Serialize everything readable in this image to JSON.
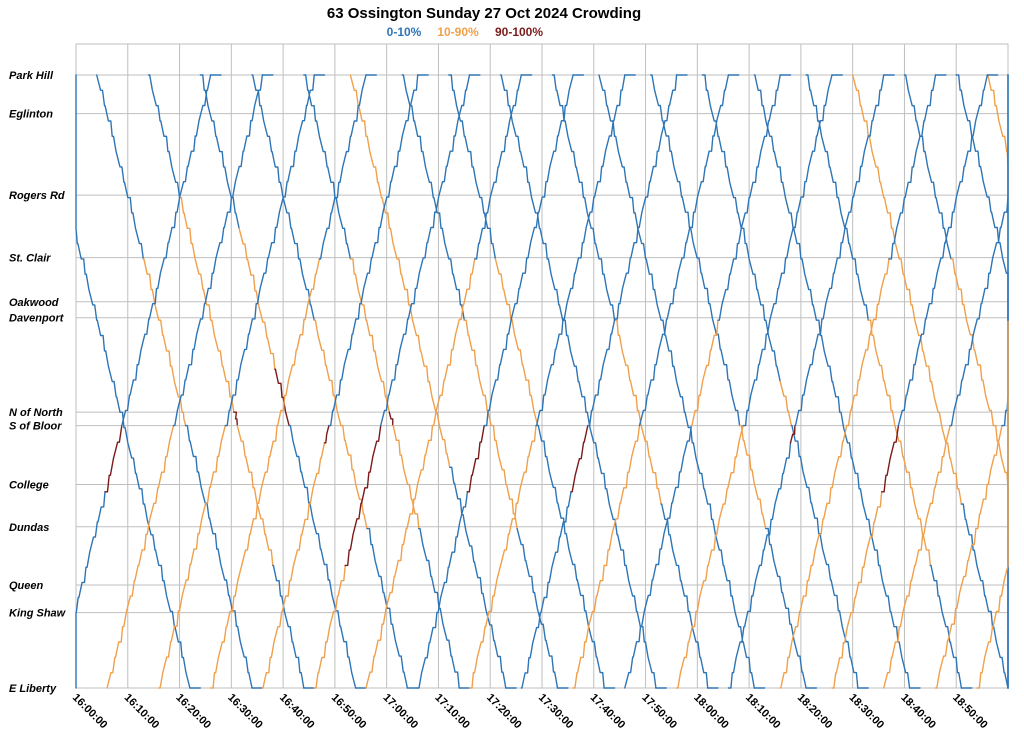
{
  "chart_data": {
    "type": "line",
    "title": "63 Ossington Sunday 27 Oct 2024 Crowding",
    "legend": [
      {
        "label": "0-10%",
        "color": "#2e75b6"
      },
      {
        "label": "10-90%",
        "color": "#f0a04b"
      },
      {
        "label": "90-100%",
        "color": "#7b1a1a"
      }
    ],
    "legend_position": "top-center",
    "grid": true,
    "stops": [
      {
        "name": "Park Hill",
        "pos": 0.0
      },
      {
        "name": "Eglinton",
        "pos": 0.063
      },
      {
        "name": "Rogers Rd",
        "pos": 0.196
      },
      {
        "name": "St. Clair",
        "pos": 0.298
      },
      {
        "name": "Oakwood",
        "pos": 0.37
      },
      {
        "name": "Davenport",
        "pos": 0.396
      },
      {
        "name": "N of North",
        "pos": 0.55
      },
      {
        "name": "S of Bloor",
        "pos": 0.572
      },
      {
        "name": "College",
        "pos": 0.668
      },
      {
        "name": "Dundas",
        "pos": 0.737
      },
      {
        "name": "Queen",
        "pos": 0.832
      },
      {
        "name": "King Shaw",
        "pos": 0.877
      },
      {
        "name": "E Liberty",
        "pos": 1.0
      }
    ],
    "x_ticks": [
      "16:00:00",
      "16:10:00",
      "16:20:00",
      "16:30:00",
      "16:40:00",
      "16:50:00",
      "17:00:00",
      "17:10:00",
      "17:20:00",
      "17:30:00",
      "17:40:00",
      "17:50:00",
      "18:00:00",
      "18:10:00",
      "18:20:00",
      "18:30:00",
      "18:40:00",
      "18:50:00"
    ],
    "xlim_minutes": [
      0,
      180
    ],
    "trips": [
      {
        "dir": "south",
        "start_min": -8,
        "segments": [
          {
            "to": 0.55,
            "load": "low"
          },
          {
            "to": 1.0,
            "load": "low"
          }
        ]
      },
      {
        "dir": "south",
        "start_min": 4,
        "segments": [
          {
            "to": 0.3,
            "load": "low"
          },
          {
            "to": 0.55,
            "load": "mid"
          },
          {
            "to": 0.572,
            "load": "mid"
          },
          {
            "to": 1.0,
            "load": "low"
          }
        ]
      },
      {
        "dir": "south",
        "start_min": 14,
        "segments": [
          {
            "to": 0.2,
            "load": "low"
          },
          {
            "to": 0.55,
            "load": "mid"
          },
          {
            "to": 0.572,
            "load": "high"
          },
          {
            "to": 0.8,
            "load": "mid"
          },
          {
            "to": 1.0,
            "load": "low"
          }
        ]
      },
      {
        "dir": "south",
        "start_min": 24,
        "segments": [
          {
            "to": 0.25,
            "load": "low"
          },
          {
            "to": 0.48,
            "load": "mid"
          },
          {
            "to": 0.572,
            "load": "high"
          },
          {
            "to": 1.0,
            "load": "low"
          }
        ]
      },
      {
        "dir": "south",
        "start_min": 34,
        "segments": [
          {
            "to": 0.4,
            "load": "low"
          },
          {
            "to": 0.572,
            "load": "mid"
          },
          {
            "to": 0.74,
            "load": "mid"
          },
          {
            "to": 1.0,
            "load": "low"
          }
        ]
      },
      {
        "dir": "south",
        "start_min": 44,
        "segments": [
          {
            "to": 0.3,
            "load": "low"
          },
          {
            "to": 0.55,
            "load": "mid"
          },
          {
            "to": 0.572,
            "load": "high"
          },
          {
            "to": 0.74,
            "load": "mid"
          },
          {
            "to": 1.0,
            "load": "low"
          }
        ]
      },
      {
        "dir": "south",
        "start_min": 53,
        "segments": [
          {
            "to": 0.2,
            "load": "mid"
          },
          {
            "to": 0.55,
            "load": "mid"
          },
          {
            "to": 0.64,
            "load": "mid"
          },
          {
            "to": 1.0,
            "load": "low"
          }
        ]
      },
      {
        "dir": "south",
        "start_min": 63,
        "segments": [
          {
            "to": 0.4,
            "load": "low"
          },
          {
            "to": 0.572,
            "load": "mid"
          },
          {
            "to": 0.74,
            "load": "mid"
          },
          {
            "to": 1.0,
            "load": "low"
          }
        ]
      },
      {
        "dir": "south",
        "start_min": 72,
        "segments": [
          {
            "to": 0.3,
            "load": "low"
          },
          {
            "to": 0.572,
            "load": "mid"
          },
          {
            "to": 1.0,
            "load": "low"
          }
        ]
      },
      {
        "dir": "south",
        "start_min": 82,
        "segments": [
          {
            "to": 0.55,
            "load": "low"
          },
          {
            "to": 1.0,
            "load": "low"
          }
        ]
      },
      {
        "dir": "south",
        "start_min": 92,
        "segments": [
          {
            "to": 0.4,
            "load": "low"
          },
          {
            "to": 0.572,
            "load": "mid"
          },
          {
            "to": 0.7,
            "load": "mid"
          },
          {
            "to": 1.0,
            "load": "low"
          }
        ]
      },
      {
        "dir": "south",
        "start_min": 101,
        "segments": [
          {
            "to": 0.55,
            "load": "low"
          },
          {
            "to": 1.0,
            "load": "low"
          }
        ]
      },
      {
        "dir": "south",
        "start_min": 111,
        "segments": [
          {
            "to": 0.572,
            "load": "low"
          },
          {
            "to": 0.74,
            "load": "mid"
          },
          {
            "to": 1.0,
            "load": "low"
          }
        ]
      },
      {
        "dir": "south",
        "start_min": 121,
        "segments": [
          {
            "to": 0.5,
            "load": "low"
          },
          {
            "to": 0.572,
            "load": "mid"
          },
          {
            "to": 1.0,
            "load": "low"
          }
        ]
      },
      {
        "dir": "south",
        "start_min": 131,
        "segments": [
          {
            "to": 0.55,
            "load": "low"
          },
          {
            "to": 1.0,
            "load": "low"
          }
        ]
      },
      {
        "dir": "south",
        "start_min": 141,
        "segments": [
          {
            "to": 0.4,
            "load": "low"
          },
          {
            "to": 0.572,
            "load": "mid"
          },
          {
            "to": 0.8,
            "load": "mid"
          },
          {
            "to": 1.0,
            "load": "low"
          }
        ]
      },
      {
        "dir": "south",
        "start_min": 150,
        "segments": [
          {
            "to": 0.2,
            "load": "mid"
          },
          {
            "to": 0.55,
            "load": "mid"
          },
          {
            "to": 0.7,
            "load": "mid"
          },
          {
            "to": 1.0,
            "load": "low"
          }
        ]
      },
      {
        "dir": "south",
        "start_min": 160,
        "segments": [
          {
            "to": 0.3,
            "load": "low"
          },
          {
            "to": 0.572,
            "load": "mid"
          },
          {
            "to": 0.75,
            "load": "mid"
          },
          {
            "to": 1.0,
            "load": "low"
          }
        ]
      },
      {
        "dir": "south",
        "start_min": 170,
        "segments": [
          {
            "to": 0.572,
            "load": "low"
          },
          {
            "to": 1.0,
            "load": "low"
          }
        ]
      },
      {
        "dir": "south",
        "start_min": 176,
        "segments": [
          {
            "to": 0.2,
            "load": "mid"
          },
          {
            "to": 1.0,
            "load": "low"
          }
        ]
      },
      {
        "dir": "north",
        "start_min": -4,
        "segments": [
          {
            "to": 0.68,
            "load": "low"
          },
          {
            "to": 0.572,
            "load": "high"
          },
          {
            "to": 0.0,
            "load": "low"
          }
        ]
      },
      {
        "dir": "north",
        "start_min": 6,
        "segments": [
          {
            "to": 0.8,
            "load": "mid"
          },
          {
            "to": 0.572,
            "load": "mid"
          },
          {
            "to": 0.0,
            "load": "low"
          }
        ]
      },
      {
        "dir": "north",
        "start_min": 16,
        "segments": [
          {
            "to": 0.572,
            "load": "mid"
          },
          {
            "to": 0.0,
            "load": "low"
          }
        ]
      },
      {
        "dir": "north",
        "start_min": 26,
        "segments": [
          {
            "to": 0.8,
            "load": "mid"
          },
          {
            "to": 0.572,
            "load": "mid"
          },
          {
            "to": 0.3,
            "load": "mid"
          },
          {
            "to": 0.0,
            "load": "low"
          }
        ]
      },
      {
        "dir": "north",
        "start_min": 36,
        "segments": [
          {
            "to": 0.6,
            "load": "mid"
          },
          {
            "to": 0.572,
            "load": "high"
          },
          {
            "to": 0.0,
            "load": "low"
          }
        ]
      },
      {
        "dir": "north",
        "start_min": 46,
        "segments": [
          {
            "to": 0.8,
            "load": "mid"
          },
          {
            "to": 0.572,
            "load": "high"
          },
          {
            "to": 0.0,
            "load": "low"
          }
        ]
      },
      {
        "dir": "north",
        "start_min": 56,
        "segments": [
          {
            "to": 0.74,
            "load": "mid"
          },
          {
            "to": 0.572,
            "load": "mid"
          },
          {
            "to": 0.3,
            "load": "mid"
          },
          {
            "to": 0.0,
            "load": "low"
          }
        ]
      },
      {
        "dir": "north",
        "start_min": 66,
        "segments": [
          {
            "to": 0.68,
            "load": "low"
          },
          {
            "to": 0.572,
            "load": "high"
          },
          {
            "to": 0.0,
            "load": "low"
          }
        ]
      },
      {
        "dir": "north",
        "start_min": 76,
        "segments": [
          {
            "to": 0.8,
            "load": "mid"
          },
          {
            "to": 0.572,
            "load": "mid"
          },
          {
            "to": 0.0,
            "load": "low"
          }
        ]
      },
      {
        "dir": "north",
        "start_min": 86,
        "segments": [
          {
            "to": 0.68,
            "load": "low"
          },
          {
            "to": 0.572,
            "load": "high"
          },
          {
            "to": 0.0,
            "load": "low"
          }
        ]
      },
      {
        "dir": "north",
        "start_min": 96,
        "segments": [
          {
            "to": 0.8,
            "load": "mid"
          },
          {
            "to": 0.572,
            "load": "mid"
          },
          {
            "to": 0.0,
            "load": "low"
          }
        ]
      },
      {
        "dir": "north",
        "start_min": 106,
        "segments": [
          {
            "to": 0.572,
            "load": "low"
          },
          {
            "to": 0.4,
            "load": "mid"
          },
          {
            "to": 0.0,
            "load": "low"
          }
        ]
      },
      {
        "dir": "north",
        "start_min": 116,
        "segments": [
          {
            "to": 0.7,
            "load": "mid"
          },
          {
            "to": 0.572,
            "load": "mid"
          },
          {
            "to": 0.0,
            "load": "low"
          }
        ]
      },
      {
        "dir": "north",
        "start_min": 126,
        "segments": [
          {
            "to": 0.6,
            "load": "low"
          },
          {
            "to": 0.572,
            "load": "high"
          },
          {
            "to": 0.0,
            "load": "low"
          }
        ]
      },
      {
        "dir": "north",
        "start_min": 136,
        "segments": [
          {
            "to": 0.8,
            "load": "mid"
          },
          {
            "to": 0.572,
            "load": "mid"
          },
          {
            "to": 0.3,
            "load": "mid"
          },
          {
            "to": 0.0,
            "load": "low"
          }
        ]
      },
      {
        "dir": "north",
        "start_min": 146,
        "segments": [
          {
            "to": 0.68,
            "load": "mid"
          },
          {
            "to": 0.572,
            "load": "high"
          },
          {
            "to": 0.0,
            "load": "low"
          }
        ]
      },
      {
        "dir": "north",
        "start_min": 156,
        "segments": [
          {
            "to": 0.8,
            "load": "mid"
          },
          {
            "to": 0.572,
            "load": "mid"
          },
          {
            "to": 0.0,
            "load": "low"
          }
        ]
      },
      {
        "dir": "north",
        "start_min": 166,
        "segments": [
          {
            "to": 0.74,
            "load": "mid"
          },
          {
            "to": 0.572,
            "load": "mid"
          },
          {
            "to": 0.3,
            "load": "low"
          },
          {
            "to": 0.0,
            "load": "low"
          }
        ]
      },
      {
        "dir": "north",
        "start_min": 174,
        "segments": [
          {
            "to": 0.65,
            "load": "mid"
          },
          {
            "to": 0.4,
            "load": "mid"
          }
        ]
      }
    ]
  },
  "colors": {
    "low": "#2e75b6",
    "mid": "#f0a04b",
    "high": "#7b1a1a",
    "grid": "#bfbfbf"
  }
}
